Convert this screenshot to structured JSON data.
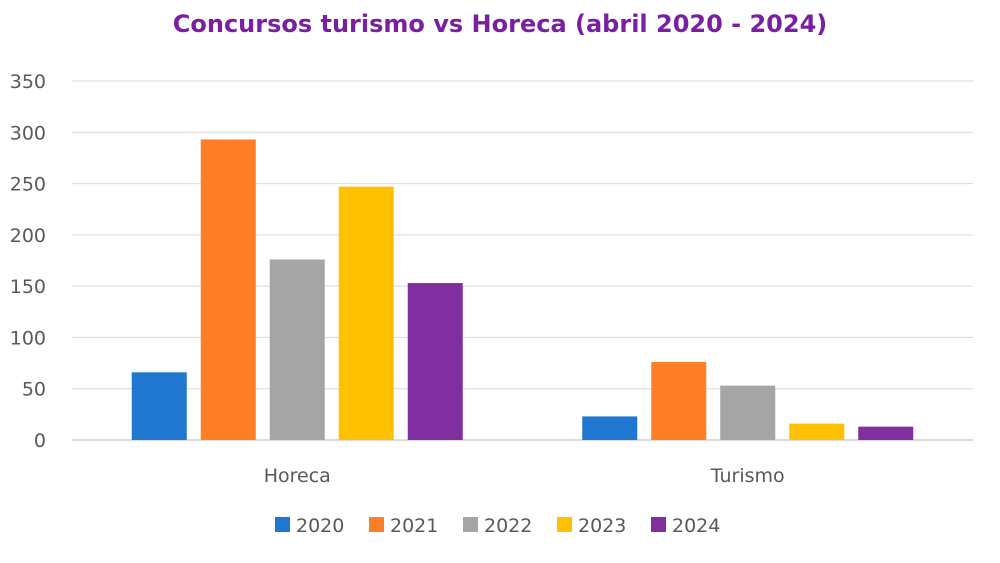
{
  "chart_data": {
    "type": "bar",
    "title": "Concursos turismo vs Horeca (abril 2020 - 2024)",
    "xlabel": "",
    "ylabel": "",
    "categories": [
      "Horeca",
      "Turismo"
    ],
    "series": [
      {
        "name": "2020",
        "color": "#1F77D0",
        "values": [
          66,
          23
        ]
      },
      {
        "name": "2021",
        "color": "#FF7F27",
        "values": [
          293,
          76
        ]
      },
      {
        "name": "2022",
        "color": "#A5A5A5",
        "values": [
          176,
          53
        ]
      },
      {
        "name": "2023",
        "color": "#FFC000",
        "values": [
          247,
          16
        ]
      },
      {
        "name": "2024",
        "color": "#7F2FA0",
        "values": [
          153,
          13
        ]
      }
    ],
    "ylim": [
      0,
      350
    ],
    "yticks": [
      0,
      50,
      100,
      150,
      200,
      250,
      300,
      350
    ],
    "grid": true,
    "legend_position": "bottom",
    "title_color": "#7B1FA2"
  }
}
